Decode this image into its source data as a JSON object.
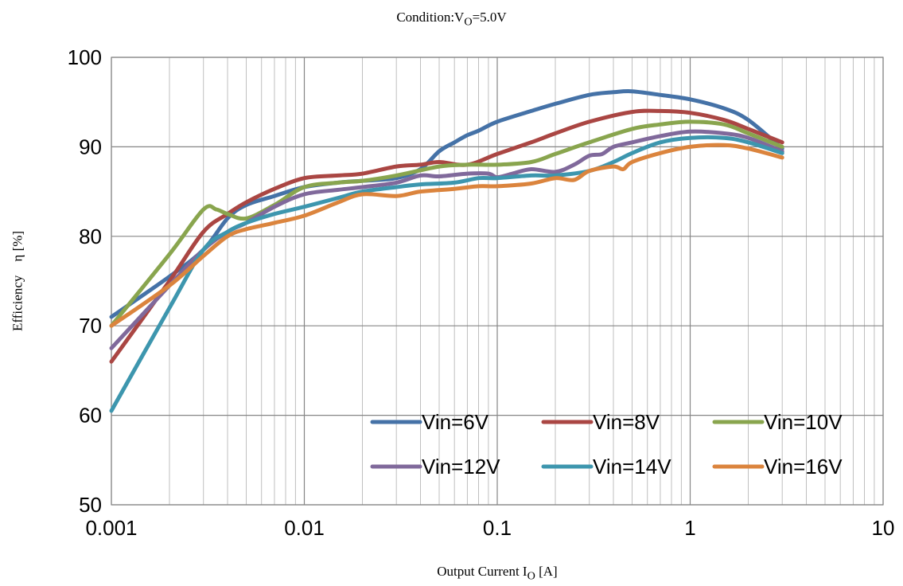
{
  "chart_data": {
    "type": "line",
    "title_prefix": "Condition:V",
    "title_sub": "O",
    "title_suffix": "=5.0V",
    "xlabel_prefix": "Output Current I",
    "xlabel_sub": "O",
    "xlabel_suffix": " [A]",
    "ylabel": "Efficiency　η [%]",
    "x_scale": "log",
    "xlim": [
      0.001,
      10
    ],
    "ylim": [
      50,
      100
    ],
    "x_ticks": [
      "0.001",
      "0.01",
      "0.1",
      "1",
      "10"
    ],
    "y_ticks": [
      "50",
      "60",
      "70",
      "80",
      "90",
      "100"
    ],
    "grid": true,
    "legend_position": "bottom-right",
    "series": [
      {
        "name": "Vin=6V",
        "color": "#4572A7",
        "points": [
          [
            0.001,
            71
          ],
          [
            0.002,
            75.5
          ],
          [
            0.003,
            78.5
          ],
          [
            0.004,
            82
          ],
          [
            0.005,
            83.5
          ],
          [
            0.007,
            84.5
          ],
          [
            0.01,
            85.5
          ],
          [
            0.015,
            86
          ],
          [
            0.02,
            86.2
          ],
          [
            0.03,
            86.5
          ],
          [
            0.04,
            87.5
          ],
          [
            0.05,
            89.5
          ],
          [
            0.06,
            90.5
          ],
          [
            0.07,
            91.3
          ],
          [
            0.08,
            91.8
          ],
          [
            0.1,
            92.8
          ],
          [
            0.15,
            94
          ],
          [
            0.2,
            94.8
          ],
          [
            0.3,
            95.8
          ],
          [
            0.4,
            96.1
          ],
          [
            0.5,
            96.2
          ],
          [
            0.7,
            95.8
          ],
          [
            1,
            95.3
          ],
          [
            1.5,
            94.3
          ],
          [
            2,
            93
          ],
          [
            3,
            89.8
          ]
        ]
      },
      {
        "name": "Vin=8V",
        "color": "#AA4643",
        "points": [
          [
            0.001,
            66
          ],
          [
            0.002,
            75
          ],
          [
            0.003,
            80.5
          ],
          [
            0.004,
            82.5
          ],
          [
            0.005,
            83.8
          ],
          [
            0.007,
            85.3
          ],
          [
            0.01,
            86.5
          ],
          [
            0.015,
            86.8
          ],
          [
            0.02,
            87
          ],
          [
            0.03,
            87.8
          ],
          [
            0.04,
            88
          ],
          [
            0.05,
            88.3
          ],
          [
            0.07,
            88
          ],
          [
            0.1,
            89.2
          ],
          [
            0.15,
            90.5
          ],
          [
            0.2,
            91.5
          ],
          [
            0.3,
            92.8
          ],
          [
            0.5,
            93.9
          ],
          [
            0.7,
            94
          ],
          [
            1,
            93.8
          ],
          [
            1.5,
            93
          ],
          [
            2,
            92
          ],
          [
            3,
            90.5
          ]
        ]
      },
      {
        "name": "Vin=10V",
        "color": "#89A54E",
        "points": [
          [
            0.001,
            70
          ],
          [
            0.002,
            78
          ],
          [
            0.003,
            83
          ],
          [
            0.0035,
            83
          ],
          [
            0.004,
            82.5
          ],
          [
            0.005,
            82
          ],
          [
            0.007,
            83.5
          ],
          [
            0.01,
            85.5
          ],
          [
            0.015,
            86
          ],
          [
            0.02,
            86.2
          ],
          [
            0.03,
            86.8
          ],
          [
            0.05,
            87.8
          ],
          [
            0.07,
            88
          ],
          [
            0.1,
            88
          ],
          [
            0.15,
            88.3
          ],
          [
            0.2,
            89.2
          ],
          [
            0.3,
            90.5
          ],
          [
            0.5,
            92
          ],
          [
            0.7,
            92.5
          ],
          [
            1,
            92.8
          ],
          [
            1.5,
            92.5
          ],
          [
            2,
            91.5
          ],
          [
            3,
            90
          ]
        ]
      },
      {
        "name": "Vin=12V",
        "color": "#80699B",
        "points": [
          [
            0.001,
            67.5
          ],
          [
            0.002,
            74.5
          ],
          [
            0.003,
            78.5
          ],
          [
            0.004,
            80.5
          ],
          [
            0.005,
            81.5
          ],
          [
            0.007,
            83.3
          ],
          [
            0.01,
            84.7
          ],
          [
            0.015,
            85.2
          ],
          [
            0.02,
            85.5
          ],
          [
            0.03,
            86
          ],
          [
            0.04,
            86.8
          ],
          [
            0.05,
            86.7
          ],
          [
            0.07,
            87
          ],
          [
            0.09,
            87
          ],
          [
            0.1,
            86.6
          ],
          [
            0.12,
            87
          ],
          [
            0.15,
            87.5
          ],
          [
            0.2,
            87.2
          ],
          [
            0.25,
            88
          ],
          [
            0.3,
            89
          ],
          [
            0.35,
            89.2
          ],
          [
            0.4,
            90
          ],
          [
            0.5,
            90.5
          ],
          [
            0.7,
            91.2
          ],
          [
            1,
            91.7
          ],
          [
            1.5,
            91.5
          ],
          [
            2,
            91
          ],
          [
            3,
            89.5
          ]
        ]
      },
      {
        "name": "Vin=14V",
        "color": "#3D96AE",
        "points": [
          [
            0.001,
            60.5
          ],
          [
            0.002,
            72
          ],
          [
            0.003,
            78.5
          ],
          [
            0.004,
            80.5
          ],
          [
            0.005,
            81.5
          ],
          [
            0.007,
            82.5
          ],
          [
            0.01,
            83.3
          ],
          [
            0.015,
            84.3
          ],
          [
            0.02,
            85
          ],
          [
            0.03,
            85.5
          ],
          [
            0.04,
            85.8
          ],
          [
            0.06,
            86
          ],
          [
            0.08,
            86.5
          ],
          [
            0.1,
            86.5
          ],
          [
            0.15,
            86.8
          ],
          [
            0.2,
            86.8
          ],
          [
            0.3,
            87.3
          ],
          [
            0.4,
            88.3
          ],
          [
            0.5,
            89.3
          ],
          [
            0.7,
            90.5
          ],
          [
            1,
            91
          ],
          [
            1.5,
            91
          ],
          [
            2,
            90.5
          ],
          [
            3,
            89.3
          ]
        ]
      },
      {
        "name": "Vin=16V",
        "color": "#DB843D",
        "points": [
          [
            0.001,
            70
          ],
          [
            0.002,
            74.5
          ],
          [
            0.003,
            77.8
          ],
          [
            0.004,
            80
          ],
          [
            0.005,
            80.8
          ],
          [
            0.007,
            81.5
          ],
          [
            0.01,
            82.3
          ],
          [
            0.015,
            83.8
          ],
          [
            0.02,
            84.7
          ],
          [
            0.03,
            84.5
          ],
          [
            0.04,
            85
          ],
          [
            0.06,
            85.3
          ],
          [
            0.08,
            85.6
          ],
          [
            0.1,
            85.6
          ],
          [
            0.15,
            85.9
          ],
          [
            0.2,
            86.5
          ],
          [
            0.25,
            86.3
          ],
          [
            0.3,
            87.3
          ],
          [
            0.4,
            87.8
          ],
          [
            0.45,
            87.5
          ],
          [
            0.5,
            88.3
          ],
          [
            0.7,
            89.3
          ],
          [
            1,
            90
          ],
          [
            1.5,
            90.2
          ],
          [
            2,
            89.8
          ],
          [
            3,
            88.8
          ]
        ]
      }
    ]
  }
}
